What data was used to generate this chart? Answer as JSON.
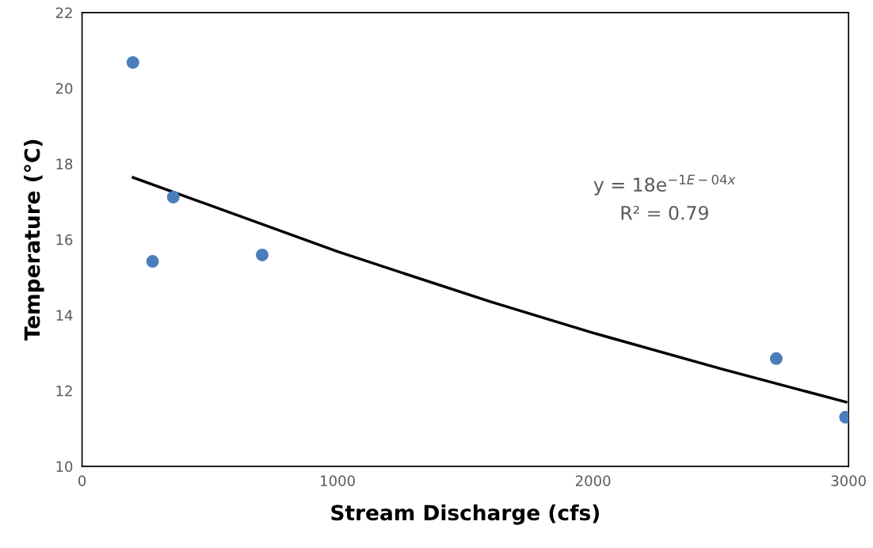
{
  "chart_data": {
    "type": "scatter",
    "xlabel": "Stream Discharge (cfs)",
    "ylabel": "Temperature (°C)",
    "series": [
      {
        "color": "#4a7ebb",
        "marker": "circle",
        "x": [
          199,
          357,
          276,
          705,
          2717,
          2988
        ],
        "values": [
          20.68,
          17.12,
          15.42,
          15.59,
          12.85,
          11.3
        ]
      },
      {
        "type": "line",
        "color": "#000000",
        "marker": "none",
        "line_style": "solid",
        "x": [
          200,
          1000,
          1600,
          2000,
          2500,
          2990
        ],
        "values": [
          17.64,
          15.68,
          14.35,
          13.53,
          12.58,
          11.7
        ]
      }
    ],
    "xlim": [
      0,
      3000
    ],
    "xticks": [
      0,
      1000,
      2000,
      3000
    ],
    "ylim": [
      10,
      22
    ],
    "yticks": [
      10,
      12,
      14,
      16,
      18,
      20,
      22
    ],
    "grid": false,
    "legend": false,
    "annotations": [
      "y = 18e$^{−1E−04x}$",
      "R² = 0.79"
    ]
  }
}
